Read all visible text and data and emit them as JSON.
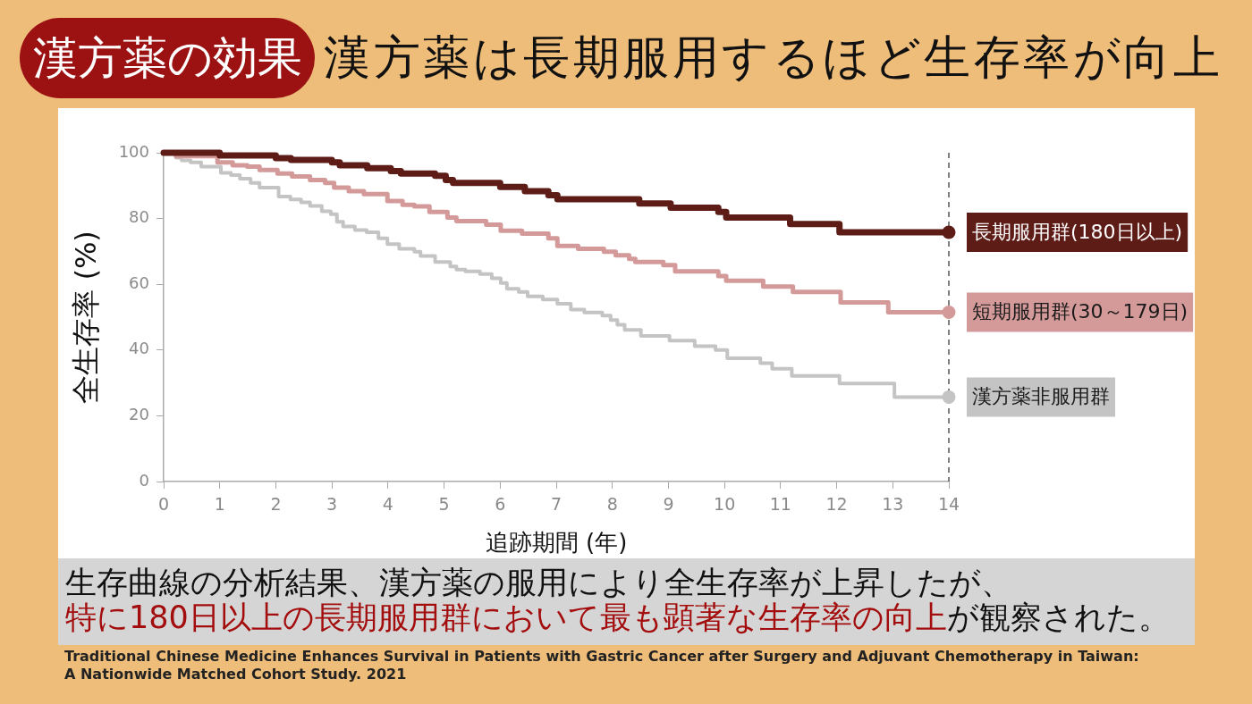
{
  "chart_data": {
    "type": "step",
    "title": "漢方薬の効果",
    "subtitle": "漢方薬は長期服用するほど生存率が向上",
    "xlabel": "追跡期間 (年)",
    "ylabel": "全生存率 (%)",
    "xlim": [
      0,
      14
    ],
    "xticks": [
      0,
      1,
      2,
      3,
      4,
      5,
      6,
      7,
      8,
      9,
      10,
      11,
      12,
      13,
      14
    ],
    "ylim": [
      0,
      100
    ],
    "yticks": [
      0,
      20,
      40,
      60,
      80,
      100
    ],
    "series": [
      {
        "name": "長期服用群(180日以上)",
        "color": "#5e1c17",
        "x": [
          0,
          1.0,
          2.0,
          2.27,
          3.0,
          3.14,
          3.63,
          4.05,
          4.23,
          4.84,
          5.03,
          5.16,
          6.0,
          6.44,
          6.86,
          7.02,
          8.48,
          9.04,
          9.89,
          10.03,
          11.17,
          12.05,
          14
        ],
        "values": [
          100,
          99.2,
          98.4,
          97.8,
          97.1,
          96.2,
          95.3,
          94.4,
          93.7,
          93.0,
          91.7,
          90.8,
          89.6,
          88.3,
          87.1,
          85.9,
          84.6,
          83.3,
          82.0,
          80.3,
          78.3,
          75.8,
          75.8
        ]
      },
      {
        "name": "短期服用群(30～179日)",
        "color": "#d49a9a",
        "x": [
          0,
          0.22,
          0.96,
          1.23,
          1.49,
          1.71,
          2.03,
          2.29,
          2.61,
          2.88,
          3.04,
          3.3,
          3.57,
          3.99,
          4.26,
          4.47,
          4.74,
          5.06,
          5.22,
          5.75,
          6.01,
          6.39,
          6.86,
          7.02,
          7.39,
          7.85,
          8.06,
          8.3,
          8.41,
          8.91,
          9.12,
          9.89,
          10.03,
          10.69,
          11.22,
          12.07,
          12.92,
          14
        ],
        "values": [
          100,
          99.0,
          97.1,
          96.2,
          95.8,
          94.8,
          93.7,
          92.8,
          91.7,
          90.8,
          89.4,
          88.3,
          87.4,
          85.3,
          84.2,
          83.7,
          82.0,
          80.3,
          79.2,
          78.1,
          76.3,
          75.4,
          74.0,
          71.7,
          70.8,
          69.9,
          68.8,
          67.7,
          66.8,
          65.8,
          63.9,
          62.5,
          61.1,
          59.3,
          57.7,
          54.5,
          51.5,
          51.5
        ]
      },
      {
        "name": "漢方薬非服用群",
        "color": "#c4c4c4",
        "x": [
          0,
          0.22,
          0.32,
          0.48,
          0.67,
          1.02,
          1.2,
          1.36,
          1.55,
          1.71,
          2.05,
          2.26,
          2.45,
          2.61,
          2.82,
          2.98,
          3.09,
          3.2,
          3.41,
          3.62,
          3.83,
          3.99,
          4.2,
          4.47,
          4.58,
          4.84,
          5.11,
          5.22,
          5.38,
          5.64,
          5.85,
          6.01,
          6.12,
          6.33,
          6.49,
          6.76,
          7.02,
          7.26,
          7.5,
          7.82,
          7.97,
          8.09,
          8.22,
          8.51,
          9.02,
          9.47,
          9.84,
          10.05,
          10.64,
          10.85,
          11.2,
          12.05,
          13.03,
          14
        ],
        "values": [
          100,
          98.5,
          97.7,
          97.1,
          95.8,
          93.9,
          93.2,
          92.1,
          90.8,
          89.4,
          86.7,
          85.8,
          84.9,
          83.8,
          82.2,
          81.3,
          79.0,
          77.6,
          76.5,
          75.8,
          74.0,
          72.2,
          70.8,
          69.9,
          68.6,
          66.8,
          65.4,
          64.5,
          63.9,
          63.1,
          61.8,
          60.4,
          58.6,
          57.7,
          56.3,
          55.4,
          54.1,
          52.3,
          51.4,
          50.5,
          49.1,
          47.7,
          46.1,
          44.3,
          42.9,
          41.2,
          40.0,
          37.5,
          36.0,
          34.3,
          32.1,
          29.8,
          25.7,
          25.7
        ]
      }
    ],
    "ref_lines": [
      {
        "axis": "x",
        "value": 14,
        "color": "#555555",
        "line_style": "dashed"
      }
    ],
    "annotations": [
      "生存曲線の分析結果、漢方薬の服用により全生存率が上昇したが、",
      "特に180日以上の長期服用群において最も顕著な生存率の向上",
      "が観察された。",
      "Traditional Chinese Medicine Enhances Survival in Patients with Gastric Cancer after Surgery and Adjuvant Chemotherapy in Taiwan: A Nationwide Matched Cohort Study. 2021"
    ]
  }
}
